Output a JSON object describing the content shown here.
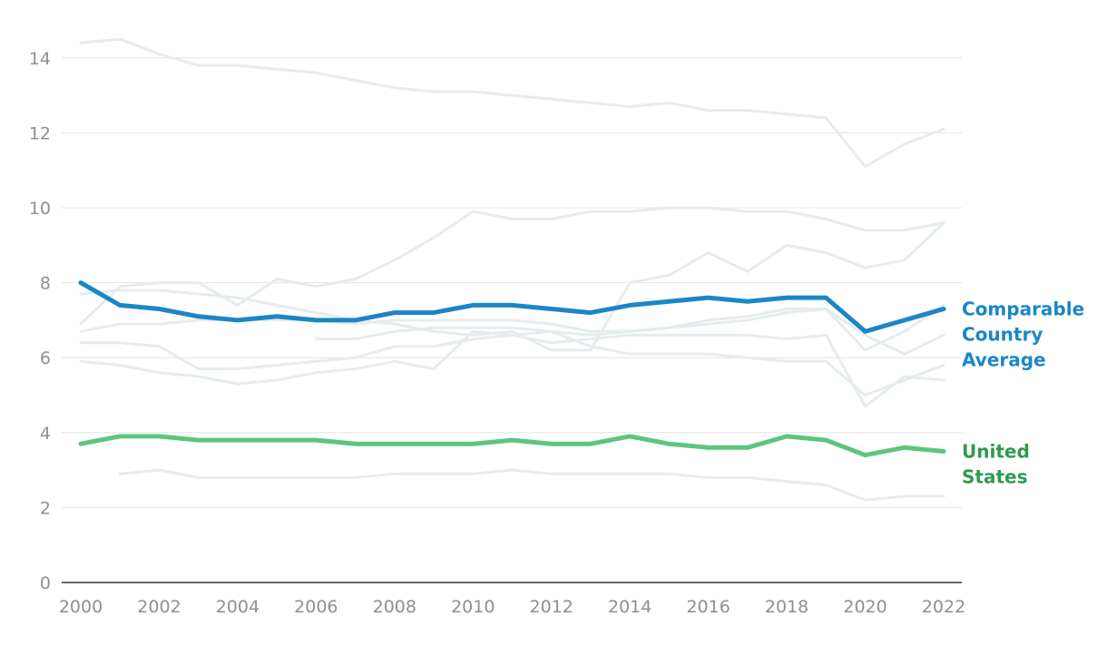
{
  "chart_data": {
    "type": "line",
    "x": [
      2000,
      2001,
      2002,
      2003,
      2004,
      2005,
      2006,
      2007,
      2008,
      2009,
      2010,
      2011,
      2012,
      2013,
      2014,
      2015,
      2016,
      2017,
      2018,
      2019,
      2020,
      2021,
      2022
    ],
    "xticks": [
      "2000",
      "2002",
      "2004",
      "2006",
      "2008",
      "2010",
      "2012",
      "2014",
      "2016",
      "2018",
      "2020",
      "2022"
    ],
    "yticks": [
      "0",
      "2",
      "4",
      "6",
      "8",
      "10",
      "12",
      "14"
    ],
    "ylim": [
      0,
      14.6
    ],
    "xlim": [
      2000,
      2022
    ],
    "grid": true,
    "highlight_series": [
      {
        "name": "Comparable Country Average",
        "label_lines": [
          "Comparable",
          "Country",
          "Average"
        ],
        "color": "#1a86c8",
        "label_color": "#1a86c8",
        "values": [
          8.0,
          7.4,
          7.3,
          7.1,
          7.0,
          7.1,
          7.0,
          7.0,
          7.2,
          7.2,
          7.4,
          7.4,
          7.3,
          7.2,
          7.4,
          7.5,
          7.6,
          7.5,
          7.6,
          7.6,
          6.7,
          7.0,
          7.3
        ]
      },
      {
        "name": "United States",
        "label_lines": [
          "United",
          "States"
        ],
        "color": "#5cc67a",
        "label_color": "#2e9a4f",
        "values": [
          3.7,
          3.9,
          3.9,
          3.8,
          3.8,
          3.8,
          3.8,
          3.7,
          3.7,
          3.7,
          3.7,
          3.8,
          3.7,
          3.7,
          3.9,
          3.7,
          3.6,
          3.6,
          3.9,
          3.8,
          3.4,
          3.6,
          3.5
        ]
      }
    ],
    "background_series_color": "#e6ecee",
    "background_series": [
      {
        "values": [
          14.4,
          14.5,
          14.1,
          13.8,
          13.8,
          13.7,
          13.6,
          13.4,
          13.2,
          13.1,
          13.1,
          13.0,
          12.9,
          12.8,
          12.7,
          12.8,
          12.6,
          12.6,
          12.5,
          12.4,
          11.1,
          11.7,
          12.1
        ]
      },
      {
        "values": [
          6.9,
          7.9,
          8.0,
          8.0,
          7.4,
          8.1,
          7.9,
          8.1,
          8.6,
          9.2,
          9.9,
          9.7,
          9.7,
          9.9,
          9.9,
          10.0,
          10.0,
          9.9,
          9.9,
          9.7,
          9.4,
          9.4,
          9.6
        ]
      },
      {
        "values": [
          7.7,
          7.8,
          7.8,
          7.7,
          7.6,
          7.4,
          7.2,
          7.0,
          6.9,
          6.7,
          6.6,
          6.7,
          6.2,
          6.2,
          8.0,
          8.2,
          8.8,
          8.3,
          9.0,
          8.8,
          8.4,
          8.6,
          9.6
        ]
      },
      {
        "values": [
          6.7,
          6.9,
          6.9,
          7.0,
          7.0,
          7.0,
          7.0,
          6.9,
          7.0,
          7.0,
          7.0,
          7.0,
          6.9,
          6.7,
          6.7,
          6.8,
          6.9,
          7.0,
          7.2,
          7.3,
          6.2,
          6.7,
          7.4
        ]
      },
      {
        "values": [
          6.4,
          6.4,
          6.3,
          5.7,
          5.7,
          5.8,
          5.9,
          6.0,
          6.3,
          6.3,
          6.5,
          6.6,
          6.7,
          6.3,
          6.1,
          6.1,
          6.1,
          6.0,
          5.9,
          5.9,
          5.0,
          5.4,
          5.8
        ]
      },
      {
        "values": [
          5.9,
          5.8,
          5.6,
          5.5,
          5.3,
          5.4,
          5.6,
          5.7,
          5.9,
          5.7,
          6.7,
          6.6,
          6.4,
          6.5,
          6.6,
          6.6,
          6.6,
          6.6,
          6.5,
          6.6,
          4.7,
          5.5,
          5.4
        ]
      },
      {
        "values": [
          null,
          null,
          null,
          null,
          null,
          null,
          6.5,
          6.5,
          6.7,
          6.8,
          6.8,
          6.8,
          6.7,
          6.6,
          6.7,
          6.8,
          7.0,
          7.1,
          7.3,
          7.3,
          6.6,
          6.1,
          6.6
        ]
      },
      {
        "values": [
          null,
          2.9,
          3.0,
          2.8,
          2.8,
          2.8,
          2.8,
          2.8,
          2.9,
          2.9,
          2.9,
          3.0,
          2.9,
          2.9,
          2.9,
          2.9,
          2.8,
          2.8,
          2.7,
          2.6,
          2.2,
          2.3,
          2.3
        ]
      }
    ]
  }
}
